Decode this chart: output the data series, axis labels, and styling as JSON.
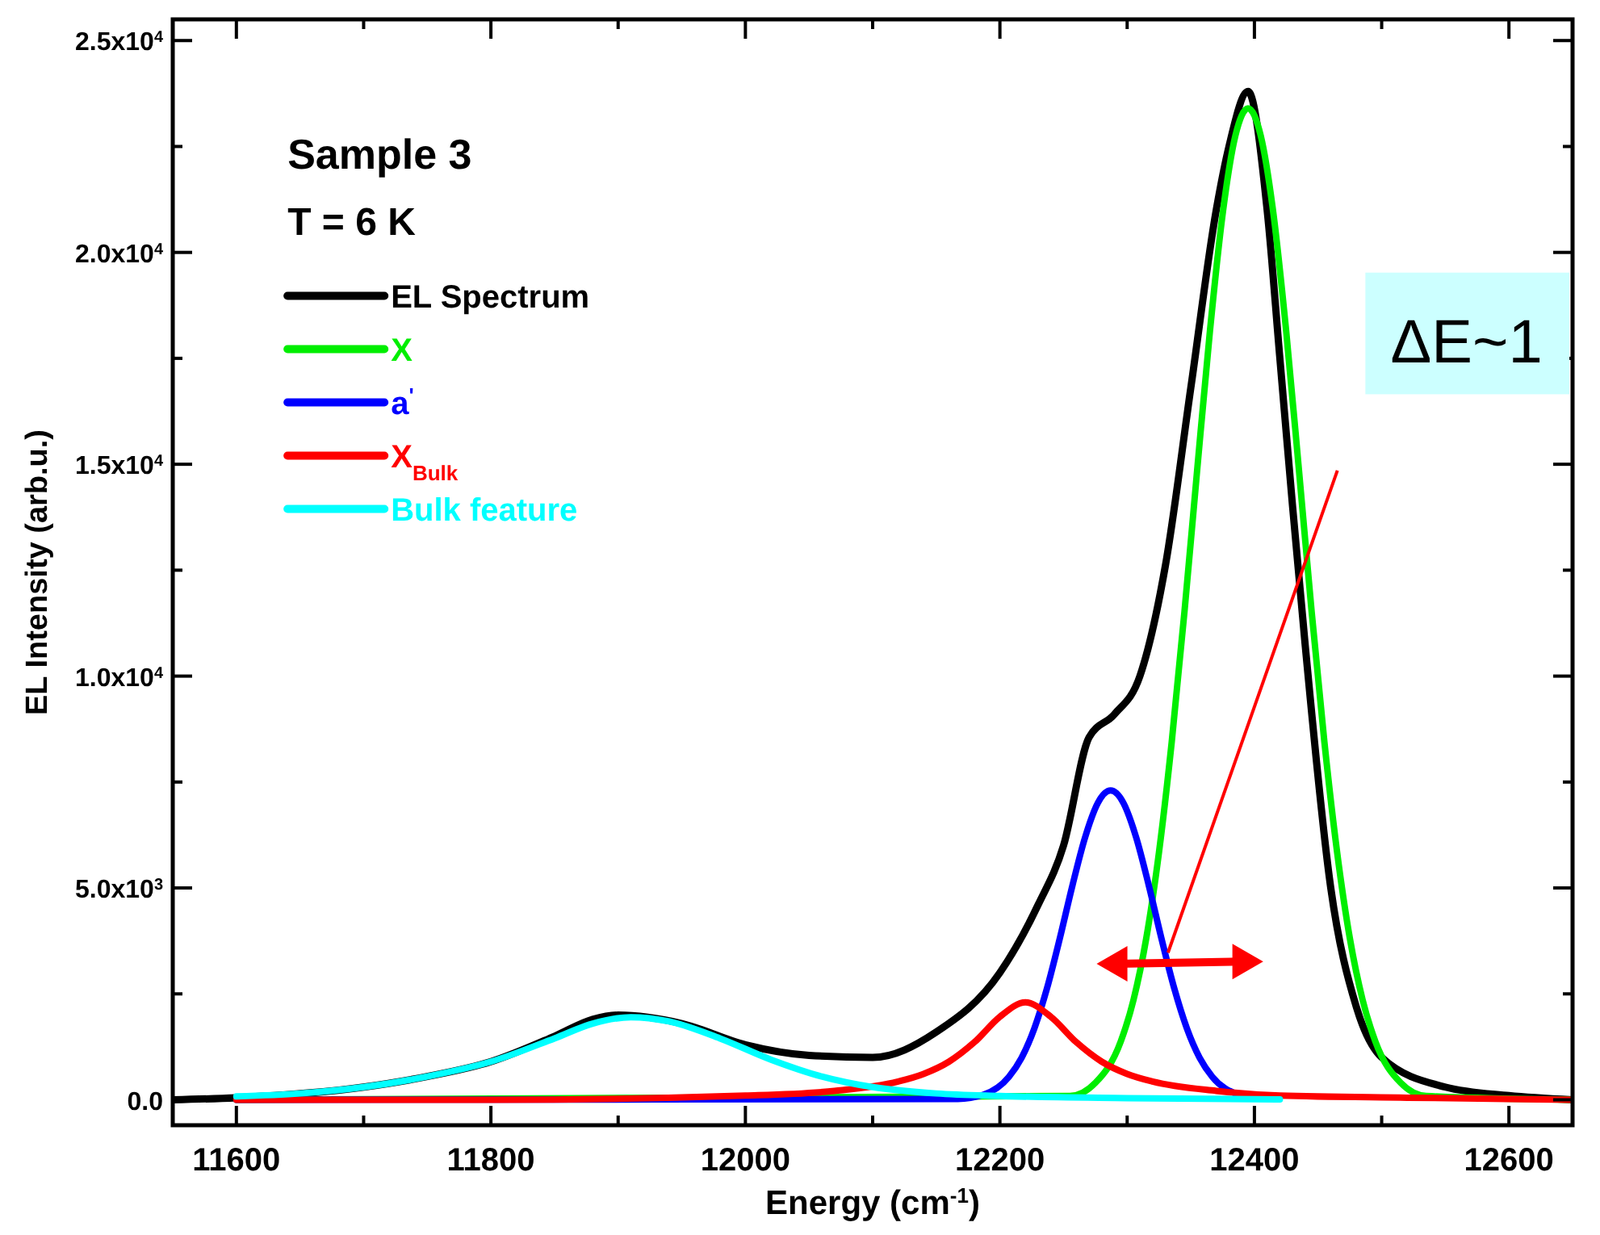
{
  "chart_data": {
    "type": "line",
    "xlabel": "Energy (cm$^{-1}$)",
    "ylabel": "EL Intensity (arb.u.)",
    "xlim": [
      11550,
      12650
    ],
    "ylim": [
      -600,
      25500
    ],
    "xticks": [
      11600,
      {
        "value": 11700,
        "label": null
      },
      11800,
      {
        "value": 11900,
        "label": null
      },
      12000,
      {
        "value": 12100,
        "label": null
      },
      12200,
      {
        "value": 12300,
        "label": null
      },
      12400,
      {
        "value": 12500,
        "label": null
      },
      12600
    ],
    "yticks": [
      {
        "value": 0,
        "label": "0.0"
      },
      {
        "value": 2500,
        "label": null
      },
      {
        "value": 5000,
        "label": "5.0x10$^{3}$"
      },
      {
        "value": 7500,
        "label": null
      },
      {
        "value": 10000,
        "label": "1.0x10$^{4}$"
      },
      {
        "value": 12500,
        "label": null
      },
      {
        "value": 15000,
        "label": "1.5x10$^{4}$"
      },
      {
        "value": 17500,
        "label": null
      },
      {
        "value": 20000,
        "label": "2.0x10$^{4}$"
      },
      {
        "value": 22500,
        "label": null
      },
      {
        "value": 25000,
        "label": "2.5x10$^{4}$"
      }
    ],
    "grid": false,
    "legend": "top left",
    "marker": "none",
    "line_style": "solid",
    "annotations": [
      "Sample 3",
      "T = 6 K",
      "ΔE~1"
    ],
    "series": [
      {
        "name": "EL Spectrum",
        "color": "#000000",
        "x": [
          11550,
          11600,
          11700,
          11750,
          11800,
          11850,
          11880,
          11900,
          11950,
          12000,
          12050,
          12100,
          12150,
          12200,
          12230,
          12250,
          12270,
          12290,
          12310,
          12330,
          12350,
          12370,
          12380,
          12395,
          12410,
          12420,
          12430,
          12440,
          12460,
          12480,
          12500,
          12550,
          12600,
          12650
        ],
        "values": [
          0,
          50,
          300,
          550,
          900,
          1500,
          1900,
          2000,
          1800,
          1300,
          1050,
          1000,
          1600,
          3000,
          4600,
          6000,
          8550,
          9100,
          10000,
          12600,
          16800,
          21000,
          22500,
          23800,
          21000,
          17500,
          14000,
          10700,
          5000,
          2200,
          1000,
          300,
          100,
          0
        ]
      },
      {
        "name": "X",
        "color": "#00ee00",
        "x": [
          11600,
          12255,
          12275,
          12295,
          12305,
          12315,
          12325,
          12335,
          12345,
          12355,
          12365,
          12375,
          12385,
          12395,
          12405,
          12415,
          12425,
          12435,
          12445,
          12455,
          12465,
          12475,
          12485,
          12495,
          12515,
          12535,
          12650
        ],
        "values": [
          0,
          90,
          400,
          1380,
          2360,
          3810,
          5840,
          8440,
          11510,
          14860,
          18130,
          20900,
          22750,
          23400,
          22750,
          20900,
          18130,
          14860,
          11510,
          8440,
          5840,
          3810,
          2360,
          1380,
          400,
          90,
          0
        ]
      },
      {
        "name": "a$^{'}$",
        "color": "#0000ff",
        "x": [
          11600,
          12167,
          12187,
          12207,
          12217,
          12227,
          12237,
          12247,
          12257,
          12267,
          12277,
          12287,
          12297,
          12307,
          12317,
          12327,
          12337,
          12347,
          12357,
          12367,
          12387
        ],
        "values": [
          0,
          20,
          120,
          540,
          990,
          1680,
          2630,
          3800,
          5060,
          6200,
          7010,
          7300,
          7010,
          6200,
          5060,
          3800,
          2630,
          1680,
          990,
          540,
          120
        ]
      },
      {
        "name": "X$_{Bulk}$",
        "color": "#ff0000",
        "x": [
          11600,
          11800,
          12000,
          12070,
          12120,
          12140,
          12160,
          12180,
          12200,
          12220,
          12240,
          12260,
          12280,
          12300,
          12320,
          12370,
          12420,
          12520,
          12650
        ],
        "values": [
          0,
          0,
          100,
          210,
          430,
          610,
          900,
          1360,
          1960,
          2300,
          1960,
          1360,
          900,
          610,
          430,
          210,
          100,
          50,
          0
        ]
      },
      {
        "name": "Bulk feature",
        "color": "#00ffff",
        "x": [
          11600,
          11650,
          11700,
          11750,
          11800,
          11850,
          11880,
          11910,
          11940,
          11980,
          12020,
          12060,
          12100,
          12150,
          12200,
          12300,
          12420
        ],
        "values": [
          80,
          150,
          300,
          550,
          900,
          1450,
          1800,
          1950,
          1850,
          1450,
          950,
          550,
          300,
          150,
          90,
          40,
          10
        ]
      }
    ]
  }
}
